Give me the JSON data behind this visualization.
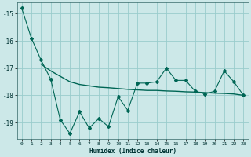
{
  "xlabel": "Humidex (Indice chaleur)",
  "background_color": "#cce8e8",
  "grid_color": "#99cccc",
  "line_color": "#006655",
  "x_values": [
    0,
    1,
    2,
    3,
    4,
    5,
    6,
    7,
    8,
    9,
    10,
    11,
    12,
    13,
    14,
    15,
    16,
    17,
    18,
    19,
    20,
    21,
    22,
    23
  ],
  "y_jagged": [
    -14.8,
    -15.9,
    -16.7,
    -17.4,
    -18.9,
    -19.4,
    -18.6,
    -19.2,
    -18.85,
    -19.15,
    -18.05,
    -18.55,
    -17.55,
    -17.55,
    -17.5,
    -17.0,
    -17.45,
    -17.45,
    -17.85,
    -17.95,
    -17.85,
    -17.1,
    -17.5,
    -18.0
  ],
  "y_smooth_x": [
    2,
    3,
    4,
    5,
    6,
    7,
    8,
    9,
    10,
    11,
    12,
    13,
    14,
    15,
    16,
    17,
    18,
    19,
    20,
    21,
    22,
    23
  ],
  "y_smooth": [
    -16.85,
    -17.1,
    -17.3,
    -17.5,
    -17.6,
    -17.65,
    -17.7,
    -17.72,
    -17.75,
    -17.78,
    -17.8,
    -17.82,
    -17.82,
    -17.84,
    -17.85,
    -17.87,
    -17.88,
    -17.9,
    -17.92,
    -17.93,
    -17.95,
    -18.0
  ],
  "ylim": [
    -19.6,
    -14.6
  ],
  "xlim": [
    -0.5,
    23.5
  ],
  "yticks": [
    -19,
    -18,
    -17,
    -16,
    -15
  ],
  "xticks": [
    0,
    1,
    2,
    3,
    4,
    5,
    6,
    7,
    8,
    9,
    10,
    11,
    12,
    13,
    14,
    15,
    16,
    17,
    18,
    19,
    20,
    21,
    22,
    23
  ]
}
